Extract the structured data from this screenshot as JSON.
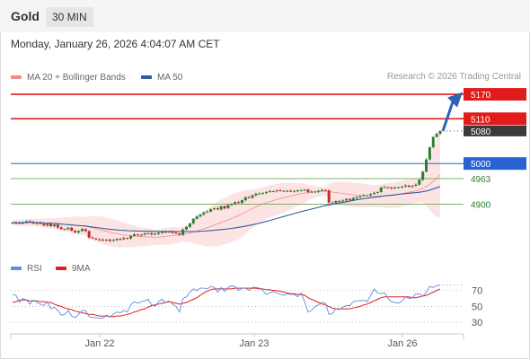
{
  "header": {
    "title": "Gold",
    "timeframe": "30 MIN",
    "datetime": "Monday, January 26, 2026 4:04:07 AM CET",
    "copyright": "Research © 2026 Trading Central"
  },
  "legend": {
    "ma20_label": "MA 20 + Bollinger Bands",
    "ma50_label": "MA 50",
    "rsi_label": "RSI",
    "ma9_label": "9MA"
  },
  "colors": {
    "up": "#2e7d32",
    "down": "#c62828",
    "ma20": "#f48a8a",
    "band_fill": "#fde4e4",
    "ma50": "#2f5d9e",
    "level_red": "#e21b1b",
    "level_blue": "#2a62d4",
    "level_green": "#7cb36a",
    "rsi": "#5b8de0",
    "rsi_ma": "#e21b1b",
    "arrow": "#2f63b4"
  },
  "chart_data": {
    "type": "candlestick",
    "x_ticks": [
      "Jan 22",
      "Jan 23",
      "Jan 26"
    ],
    "price": {
      "ylim": [
        4780,
        5190
      ],
      "closes": [
        4855,
        4854,
        4853,
        4856,
        4858,
        4857,
        4853,
        4854,
        4852,
        4848,
        4852,
        4846,
        4850,
        4843,
        4839,
        4839,
        4842,
        4835,
        4831,
        4834,
        4839,
        4834,
        4818,
        4816,
        4814,
        4813,
        4811,
        4813,
        4810,
        4812,
        4815,
        4814,
        4817,
        4816,
        4822,
        4826,
        4824,
        4825,
        4828,
        4829,
        4826,
        4827,
        4830,
        4832,
        4832,
        4833,
        4830,
        4828,
        4825,
        4838,
        4844,
        4853,
        4864,
        4870,
        4875,
        4880,
        4882,
        4888,
        4890,
        4887,
        4895,
        4890,
        4898,
        4901,
        4905,
        4903,
        4910,
        4917,
        4916,
        4922,
        4926,
        4926,
        4928,
        4930,
        4932,
        4932,
        4934,
        4933,
        4933,
        4933,
        4931,
        4933,
        4934,
        4934,
        4936,
        4930,
        4931,
        4931,
        4933,
        4935,
        4934,
        4904,
        4903,
        4908,
        4907,
        4909,
        4913,
        4910,
        4915,
        4918,
        4920,
        4922,
        4922,
        4925,
        4928,
        4930,
        4941,
        4942,
        4941,
        4939,
        4941,
        4942,
        4943,
        4946,
        4943,
        4945,
        4948,
        4960,
        4980,
        5010,
        5040,
        5065,
        5073,
        5080
      ],
      "levels": [
        {
          "value": 5170,
          "label": "5170",
          "kind": "resistance-red"
        },
        {
          "value": 5110,
          "label": "5110",
          "kind": "resistance-red"
        },
        {
          "value": 5080,
          "label": "5080",
          "kind": "last-price"
        },
        {
          "value": 5000,
          "label": "5000",
          "kind": "pivot-blue"
        },
        {
          "value": 4963,
          "label": "4963",
          "kind": "support-green"
        },
        {
          "value": 4900,
          "label": "4900",
          "kind": "support-green"
        }
      ]
    },
    "rsi": {
      "ylim": [
        20,
        90
      ],
      "ticks": [
        70,
        50,
        30
      ],
      "values": [
        65,
        64,
        55,
        60,
        58,
        53,
        58,
        55,
        53,
        51,
        56,
        47,
        49,
        45,
        39,
        40,
        45,
        38,
        36,
        40,
        45,
        45,
        37,
        36,
        36,
        35,
        35,
        39,
        37,
        40,
        43,
        42,
        45,
        43,
        52,
        56,
        54,
        56,
        57,
        59,
        52,
        50,
        56,
        59,
        55,
        57,
        53,
        50,
        43,
        60,
        62,
        68,
        72,
        70,
        73,
        73,
        72,
        75,
        74,
        68,
        74,
        69,
        74,
        76,
        75,
        70,
        73,
        73,
        70,
        74,
        74,
        73,
        70,
        65,
        67,
        69,
        67,
        65,
        64,
        66,
        65,
        65,
        62,
        67,
        56,
        43,
        45,
        50,
        52,
        55,
        54,
        40,
        41,
        47,
        46,
        49,
        51,
        51,
        56,
        57,
        57,
        58,
        56,
        64,
        72,
        67,
        66,
        67,
        60,
        56,
        55,
        54,
        57,
        62,
        60,
        61,
        66,
        66,
        63,
        68,
        75,
        74,
        76,
        77
      ],
      "ma9": [
        55,
        56,
        58,
        58,
        58,
        57,
        57,
        57,
        56,
        56,
        55,
        55,
        53,
        51,
        50,
        48,
        47,
        46,
        44,
        43,
        42,
        41,
        40,
        40,
        39,
        38,
        38,
        38,
        37,
        37,
        38,
        38,
        39,
        40,
        41,
        43,
        44,
        46,
        47,
        49,
        51,
        52,
        53,
        54,
        55,
        56,
        55,
        54,
        53,
        54,
        55,
        57,
        59,
        61,
        64,
        67,
        69,
        71,
        72,
        72,
        72,
        72,
        72,
        72,
        73,
        73,
        73,
        73,
        73,
        73,
        73,
        72,
        72,
        71,
        71,
        70,
        70,
        69,
        68,
        67,
        66,
        66,
        65,
        65,
        64,
        61,
        59,
        57,
        55,
        53,
        52,
        50,
        48,
        47,
        47,
        47,
        47,
        47,
        48,
        49,
        50,
        52,
        53,
        55,
        57,
        59,
        61,
        62,
        62,
        62,
        62,
        62,
        62,
        62,
        62,
        61,
        61,
        62,
        63,
        64,
        66,
        68,
        70,
        72
      ]
    }
  }
}
